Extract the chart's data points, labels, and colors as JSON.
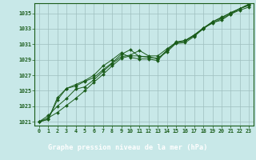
{
  "xlabel": "Graphe pression niveau de la mer (hPa)",
  "xlim": [
    -0.5,
    23.5
  ],
  "ylim": [
    1020.5,
    1036.3
  ],
  "yticks": [
    1021,
    1023,
    1025,
    1027,
    1029,
    1031,
    1033,
    1035
  ],
  "xticks": [
    0,
    1,
    2,
    3,
    4,
    5,
    6,
    7,
    8,
    9,
    10,
    11,
    12,
    13,
    14,
    15,
    16,
    17,
    18,
    19,
    20,
    21,
    22,
    23
  ],
  "background_color": "#c8e8e8",
  "plot_bg_color": "#c8e8e8",
  "footer_bg_color": "#1a5c1a",
  "grid_color": "#9fbfbf",
  "line_color": "#1a5c1a",
  "series": [
    [
      1021.0,
      1021.5,
      1022.2,
      1023.1,
      1024.0,
      1025.0,
      1026.1,
      1027.1,
      1028.2,
      1029.2,
      1029.5,
      1029.5,
      1029.3,
      1029.2,
      1030.0,
      1031.1,
      1031.2,
      1032.0,
      1033.0,
      1033.8,
      1034.1,
      1034.9,
      1035.4,
      1035.8
    ],
    [
      1021.0,
      1021.8,
      1023.0,
      1024.0,
      1025.2,
      1025.5,
      1026.4,
      1027.5,
      1028.5,
      1029.4,
      1029.6,
      1030.2,
      1029.5,
      1029.5,
      1030.4,
      1031.2,
      1031.4,
      1032.2,
      1033.0,
      1033.9,
      1034.4,
      1035.1,
      1035.6,
      1036.1
    ],
    [
      1021.0,
      1021.3,
      1023.8,
      1025.3,
      1025.6,
      1026.2,
      1026.7,
      1027.7,
      1028.6,
      1029.7,
      1030.3,
      1029.4,
      1029.4,
      1029.1,
      1030.2,
      1031.2,
      1031.4,
      1032.1,
      1033.1,
      1033.7,
      1034.3,
      1034.9,
      1035.6,
      1036.0
    ],
    [
      1021.0,
      1021.3,
      1024.1,
      1025.3,
      1025.8,
      1026.3,
      1027.0,
      1028.2,
      1029.0,
      1029.9,
      1029.3,
      1029.1,
      1029.1,
      1028.9,
      1030.2,
      1031.3,
      1031.5,
      1032.2,
      1033.1,
      1033.9,
      1034.5,
      1035.0,
      1035.6,
      1036.2
    ]
  ]
}
